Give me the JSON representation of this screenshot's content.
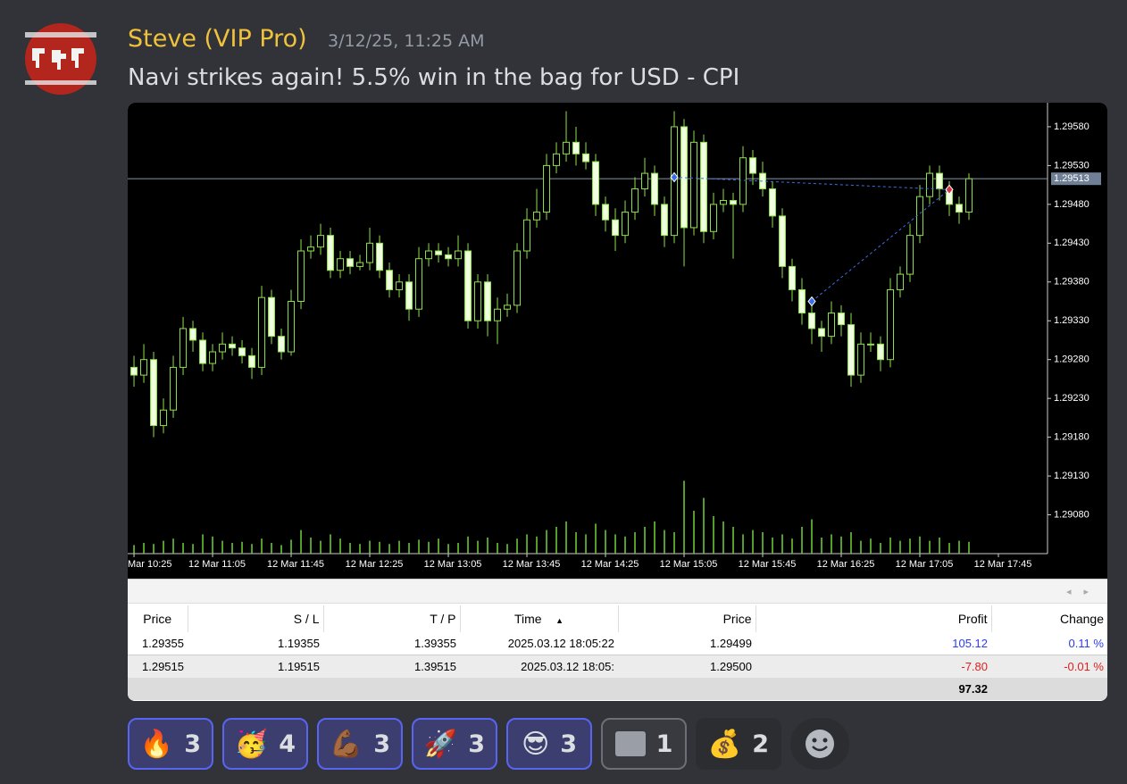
{
  "message": {
    "author": "Steve (VIP Pro)",
    "timestamp": "3/12/25, 11:25 AM",
    "text": "Navi strikes again! 5.5% win in the bag for USD - CPI"
  },
  "chart_data": {
    "type": "candlestick",
    "candles": [
      [
        1.2927,
        1.29285,
        1.29245,
        1.2926
      ],
      [
        1.2926,
        1.293,
        1.2925,
        1.2928
      ],
      [
        1.2928,
        1.2929,
        1.2918,
        1.29195
      ],
      [
        1.29195,
        1.2923,
        1.29185,
        1.29215
      ],
      [
        1.29215,
        1.29285,
        1.29205,
        1.2927
      ],
      [
        1.2927,
        1.29335,
        1.2926,
        1.2932
      ],
      [
        1.2932,
        1.2933,
        1.2929,
        1.29305
      ],
      [
        1.29305,
        1.29315,
        1.29265,
        1.29275
      ],
      [
        1.29275,
        1.293,
        1.29265,
        1.2929
      ],
      [
        1.2929,
        1.29315,
        1.2928,
        1.293
      ],
      [
        1.293,
        1.2931,
        1.29285,
        1.29295
      ],
      [
        1.29295,
        1.29305,
        1.29275,
        1.29285
      ],
      [
        1.29285,
        1.29295,
        1.29255,
        1.2927
      ],
      [
        1.2927,
        1.29375,
        1.2926,
        1.2936
      ],
      [
        1.2936,
        1.2937,
        1.293,
        1.2931
      ],
      [
        1.2931,
        1.2932,
        1.2928,
        1.2929
      ],
      [
        1.2929,
        1.2937,
        1.29285,
        1.29355
      ],
      [
        1.29355,
        1.29435,
        1.29345,
        1.2942
      ],
      [
        1.2942,
        1.2944,
        1.2941,
        1.29425
      ],
      [
        1.29425,
        1.29455,
        1.29415,
        1.2944
      ],
      [
        1.2944,
        1.2945,
        1.29385,
        1.29395
      ],
      [
        1.29395,
        1.2942,
        1.29385,
        1.2941
      ],
      [
        1.2941,
        1.2942,
        1.2939,
        1.294
      ],
      [
        1.294,
        1.29415,
        1.29395,
        1.29405
      ],
      [
        1.29405,
        1.2945,
        1.29395,
        1.2943
      ],
      [
        1.2943,
        1.2944,
        1.29385,
        1.29395
      ],
      [
        1.29395,
        1.29405,
        1.2936,
        1.2937
      ],
      [
        1.2937,
        1.2939,
        1.2936,
        1.2938
      ],
      [
        1.2938,
        1.2939,
        1.2933,
        1.29345
      ],
      [
        1.29345,
        1.29425,
        1.29335,
        1.2941
      ],
      [
        1.2941,
        1.2943,
        1.294,
        1.2942
      ],
      [
        1.2942,
        1.2943,
        1.29405,
        1.29415
      ],
      [
        1.29415,
        1.29425,
        1.294,
        1.2941
      ],
      [
        1.2941,
        1.2944,
        1.294,
        1.2942
      ],
      [
        1.2942,
        1.2943,
        1.2932,
        1.2933
      ],
      [
        1.2933,
        1.2939,
        1.2932,
        1.2938
      ],
      [
        1.2938,
        1.2939,
        1.2931,
        1.2933
      ],
      [
        1.2933,
        1.2936,
        1.293,
        1.29345
      ],
      [
        1.29345,
        1.29365,
        1.29335,
        1.2935
      ],
      [
        1.2935,
        1.2943,
        1.2934,
        1.2942
      ],
      [
        1.2942,
        1.29475,
        1.2941,
        1.2946
      ],
      [
        1.2946,
        1.295,
        1.2945,
        1.2947
      ],
      [
        1.2947,
        1.29545,
        1.2946,
        1.2953
      ],
      [
        1.2953,
        1.2956,
        1.2952,
        1.29545
      ],
      [
        1.29545,
        1.296,
        1.29535,
        1.2956
      ],
      [
        1.2956,
        1.2958,
        1.2953,
        1.29545
      ],
      [
        1.29545,
        1.2956,
        1.29525,
        1.29535
      ],
      [
        1.29535,
        1.29545,
        1.29465,
        1.2948
      ],
      [
        1.2948,
        1.2949,
        1.29445,
        1.2946
      ],
      [
        1.2946,
        1.29475,
        1.2942,
        1.2944
      ],
      [
        1.2944,
        1.29485,
        1.2943,
        1.2947
      ],
      [
        1.2947,
        1.29515,
        1.2946,
        1.295
      ],
      [
        1.295,
        1.2954,
        1.2949,
        1.2952
      ],
      [
        1.2952,
        1.2953,
        1.29465,
        1.2948
      ],
      [
        1.2948,
        1.2949,
        1.29425,
        1.2944
      ],
      [
        1.2944,
        1.296,
        1.2943,
        1.2958
      ],
      [
        1.2958,
        1.2959,
        1.294,
        1.2945
      ],
      [
        1.2945,
        1.29575,
        1.2944,
        1.2956
      ],
      [
        1.2956,
        1.2957,
        1.2943,
        1.29445
      ],
      [
        1.29445,
        1.29495,
        1.29435,
        1.2948
      ],
      [
        1.2948,
        1.295,
        1.2947,
        1.29485
      ],
      [
        1.29485,
        1.29495,
        1.2941,
        1.2948
      ],
      [
        1.2948,
        1.29555,
        1.2947,
        1.2954
      ],
      [
        1.2954,
        1.2955,
        1.29505,
        1.2952
      ],
      [
        1.2952,
        1.29535,
        1.2949,
        1.295
      ],
      [
        1.295,
        1.2951,
        1.2945,
        1.29465
      ],
      [
        1.29465,
        1.29475,
        1.29385,
        1.294
      ],
      [
        1.294,
        1.2941,
        1.29355,
        1.2937
      ],
      [
        1.2937,
        1.29385,
        1.29325,
        1.2934
      ],
      [
        1.2934,
        1.2935,
        1.293,
        1.2932
      ],
      [
        1.2932,
        1.2933,
        1.2929,
        1.2931
      ],
      [
        1.2931,
        1.29355,
        1.293,
        1.2934
      ],
      [
        1.2934,
        1.2935,
        1.2931,
        1.29325
      ],
      [
        1.29325,
        1.2934,
        1.29245,
        1.2926
      ],
      [
        1.2926,
        1.29315,
        1.2925,
        1.293
      ],
      [
        1.293,
        1.29315,
        1.2929,
        1.293
      ],
      [
        1.293,
        1.2931,
        1.29265,
        1.2928
      ],
      [
        1.2928,
        1.29385,
        1.2927,
        1.2937
      ],
      [
        1.2937,
        1.294,
        1.2936,
        1.2939
      ],
      [
        1.2939,
        1.29455,
        1.2938,
        1.2944
      ],
      [
        1.2944,
        1.29505,
        1.2943,
        1.2949
      ],
      [
        1.2949,
        1.2953,
        1.2948,
        1.2952
      ],
      [
        1.2952,
        1.2953,
        1.29485,
        1.295
      ],
      [
        1.295,
        1.2951,
        1.29465,
        1.2948
      ],
      [
        1.2948,
        1.2949,
        1.29455,
        1.2947
      ],
      [
        1.2947,
        1.2952,
        1.2946,
        1.29513
      ]
    ],
    "volumes": [
      8,
      10,
      9,
      12,
      14,
      10,
      9,
      18,
      16,
      12,
      10,
      11,
      9,
      14,
      10,
      8,
      13,
      22,
      15,
      12,
      18,
      14,
      10,
      9,
      12,
      11,
      9,
      12,
      10,
      13,
      11,
      14,
      9,
      10,
      16,
      12,
      15,
      10,
      9,
      14,
      18,
      16,
      22,
      25,
      30,
      20,
      18,
      28,
      22,
      18,
      16,
      20,
      25,
      30,
      22,
      20,
      68,
      40,
      52,
      35,
      30,
      25,
      18,
      22,
      20,
      15,
      18,
      14,
      25,
      32,
      15,
      18,
      16,
      20,
      12,
      14,
      10,
      15,
      12,
      14,
      16,
      12,
      15,
      10,
      12,
      11
    ],
    "volume_lim": [
      0,
      100
    ],
    "up_color": "#000000",
    "down_color": "#f0ffe0",
    "line_color": "#8ee04a",
    "volume_color": "#6fd33a",
    "xlim": [
      -0.64,
      93
    ],
    "xticks": [
      {
        "value": 0,
        "label": "Mar 10:25"
      },
      {
        "value": 8,
        "label": "12 Mar 11:05"
      },
      {
        "value": 16,
        "label": "12 Mar 11:45"
      },
      {
        "value": 24,
        "label": "12 Mar 12:25"
      },
      {
        "value": 32,
        "label": "12 Mar 13:05"
      },
      {
        "value": 40,
        "label": "12 Mar 13:45"
      },
      {
        "value": 48,
        "label": "12 Mar 14:25"
      },
      {
        "value": 56,
        "label": "12 Mar 15:05"
      },
      {
        "value": 64,
        "label": "12 Mar 15:45"
      },
      {
        "value": 72,
        "label": "12 Mar 16:25"
      },
      {
        "value": 80,
        "label": "12 Mar 17:05"
      },
      {
        "value": 88,
        "label": "12 Mar 17:45"
      }
    ],
    "ylim": [
      1.2903,
      1.29611
    ],
    "yticks": [
      {
        "value": 1.2958,
        "label": "1.29580"
      },
      {
        "value": 1.2953,
        "label": "1.29530"
      },
      {
        "value": 1.2948,
        "label": "1.29480"
      },
      {
        "value": 1.2943,
        "label": "1.29430"
      },
      {
        "value": 1.2938,
        "label": "1.29380"
      },
      {
        "value": 1.2933,
        "label": "1.29330"
      },
      {
        "value": 1.2928,
        "label": "1.29280"
      },
      {
        "value": 1.2923,
        "label": "1.29230"
      },
      {
        "value": 1.2918,
        "label": "1.29180"
      },
      {
        "value": 1.2913,
        "label": "1.29130"
      },
      {
        "value": 1.2908,
        "label": "1.29080"
      }
    ],
    "current_price": {
      "value": 1.29513,
      "label": "1.29513"
    }
  },
  "table": {
    "headers": [
      "Price",
      "S / L",
      "T / P",
      "Time",
      "Price",
      "Profit",
      "Change"
    ],
    "rows": [
      [
        "1.29355",
        "1.19355",
        "1.39355",
        "2025.03.12 18:05:22",
        "1.29499",
        "105.12",
        "0.11 %"
      ],
      [
        "1.29515",
        "1.19515",
        "1.39515",
        "2025.03.12 18:05:",
        "1.29500",
        "-7.80",
        "-0.01 %"
      ]
    ],
    "total": "97.32"
  },
  "reactions": [
    {
      "emoji": "🔥",
      "count": "3"
    },
    {
      "emoji": "🥳",
      "count": "4"
    },
    {
      "emoji": "💪🏾",
      "count": "3"
    },
    {
      "emoji": "🚀",
      "count": "3"
    },
    {
      "emoji": "😎",
      "count": "3"
    },
    {
      "emoji": "",
      "count": "1"
    },
    {
      "emoji": "💰",
      "count": "2"
    }
  ]
}
